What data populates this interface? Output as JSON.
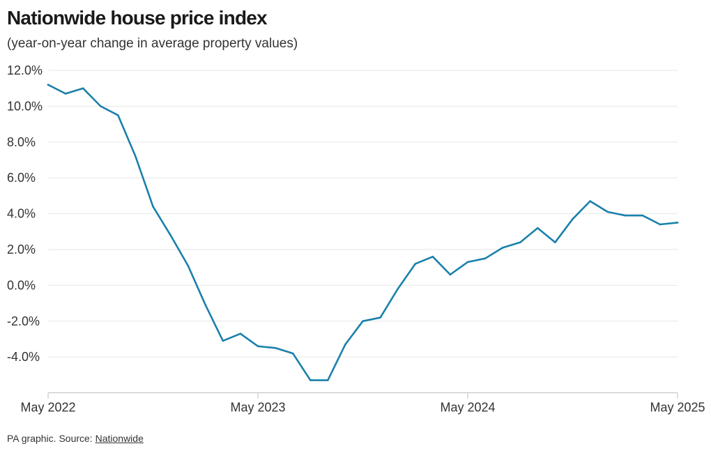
{
  "header": {
    "title": "Nationwide house price index",
    "subtitle": "(year-on-year change in average property values)"
  },
  "footer": {
    "prefix": "PA graphic. Source: ",
    "source_link": "Nationwide"
  },
  "colors": {
    "series": "#1a80ab"
  },
  "chart_data": {
    "type": "line",
    "title": "Nationwide house price index",
    "subtitle": "(year-on-year change in average property values)",
    "xlabel": "",
    "ylabel": "",
    "x": [
      "2022-05",
      "2022-06",
      "2022-07",
      "2022-08",
      "2022-09",
      "2022-10",
      "2022-11",
      "2022-12",
      "2023-01",
      "2023-02",
      "2023-03",
      "2023-04",
      "2023-05",
      "2023-06",
      "2023-07",
      "2023-08",
      "2023-09",
      "2023-10",
      "2023-11",
      "2023-12",
      "2024-01",
      "2024-02",
      "2024-03",
      "2024-04",
      "2024-05",
      "2024-06",
      "2024-07",
      "2024-08",
      "2024-09",
      "2024-10",
      "2024-11",
      "2024-12",
      "2025-01",
      "2025-02",
      "2025-03",
      "2025-04",
      "2025-05"
    ],
    "series": [
      {
        "values": [
          11.2,
          10.7,
          11.0,
          10.0,
          9.5,
          7.2,
          4.4,
          2.8,
          1.1,
          -1.1,
          -3.1,
          -2.7,
          -3.4,
          -3.5,
          -3.8,
          -5.3,
          -5.3,
          -3.3,
          -2.0,
          -1.8,
          -0.2,
          1.2,
          1.6,
          0.6,
          1.3,
          1.5,
          2.1,
          2.4,
          3.2,
          2.4,
          3.7,
          4.7,
          4.1,
          3.9,
          3.9,
          3.4,
          3.5
        ]
      }
    ],
    "x_ticks": [
      {
        "label": "May 2022",
        "value": "2022-05"
      },
      {
        "label": "May 2023",
        "value": "2023-05"
      },
      {
        "label": "May 2024",
        "value": "2024-05"
      },
      {
        "label": "May 2025",
        "value": "2025-05"
      }
    ],
    "y_ticks": [
      {
        "label": "12.0%",
        "value": 12
      },
      {
        "label": "10.0%",
        "value": 10
      },
      {
        "label": "8.0%",
        "value": 8
      },
      {
        "label": "6.0%",
        "value": 6
      },
      {
        "label": "4.0%",
        "value": 4
      },
      {
        "label": "2.0%",
        "value": 2
      },
      {
        "label": "0.0%",
        "value": 0
      },
      {
        "label": "-2.0%",
        "value": -2
      },
      {
        "label": "-4.0%",
        "value": -4
      }
    ],
    "ylim": [
      -6,
      12
    ],
    "grid": true,
    "legend": "none"
  }
}
